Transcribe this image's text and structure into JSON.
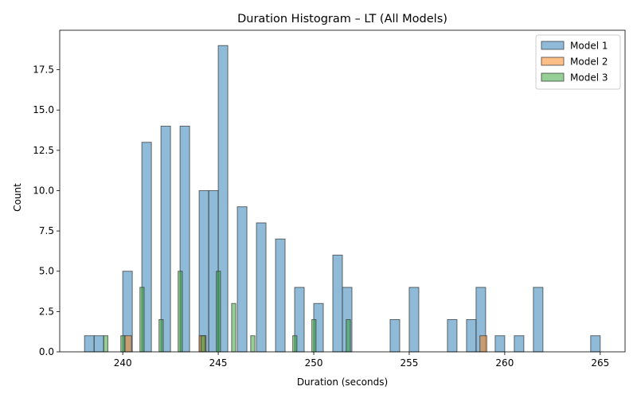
{
  "chart_data": {
    "type": "bar",
    "title": "Duration Histogram – LT (All Models)",
    "xlabel": "Duration (seconds)",
    "ylabel": "Count",
    "xlim": [
      236.7,
      266.3
    ],
    "ylim": [
      0,
      19.95
    ],
    "xticks": [
      240,
      245,
      250,
      255,
      260,
      265
    ],
    "yticks": [
      "0.0",
      "2.5",
      "5.0",
      "7.5",
      "10.0",
      "12.5",
      "15.0",
      "17.5"
    ],
    "legend_position": "upper right",
    "grid": false,
    "series": [
      {
        "name": "Model 1",
        "color": "#1f77b4",
        "alpha": 0.5,
        "bin_width": 0.5,
        "bins": [
          [
            238.0,
            1
          ],
          [
            238.5,
            1
          ],
          [
            240.0,
            5
          ],
          [
            241.0,
            13
          ],
          [
            242.0,
            14
          ],
          [
            243.0,
            14
          ],
          [
            244.0,
            10
          ],
          [
            244.5,
            10
          ],
          [
            245.0,
            19
          ],
          [
            246.0,
            9
          ],
          [
            247.0,
            8
          ],
          [
            248.0,
            7
          ],
          [
            249.0,
            4
          ],
          [
            250.0,
            3
          ],
          [
            251.0,
            6
          ],
          [
            251.5,
            4
          ],
          [
            254.0,
            2
          ],
          [
            255.0,
            4
          ],
          [
            257.0,
            2
          ],
          [
            258.0,
            2
          ],
          [
            258.5,
            4
          ],
          [
            259.5,
            1
          ],
          [
            260.5,
            1
          ],
          [
            261.5,
            4
          ],
          [
            264.5,
            1
          ]
        ]
      },
      {
        "name": "Model 2",
        "color": "#ff7f0e",
        "alpha": 0.5,
        "bin_width": 0.36,
        "bins": [
          [
            240.1,
            1
          ],
          [
            244.0,
            1
          ],
          [
            258.7,
            1
          ]
        ]
      },
      {
        "name": "Model 3",
        "color": "#2ca02c",
        "alpha": 0.5,
        "bin_width": 0.22,
        "bins": [
          [
            239.0,
            1
          ],
          [
            239.9,
            1
          ],
          [
            240.9,
            4
          ],
          [
            241.9,
            2
          ],
          [
            242.9,
            5
          ],
          [
            244.1,
            1
          ],
          [
            244.9,
            5
          ],
          [
            245.7,
            3
          ],
          [
            246.7,
            1
          ],
          [
            248.9,
            1
          ],
          [
            249.9,
            2
          ],
          [
            251.7,
            2
          ]
        ]
      }
    ]
  }
}
